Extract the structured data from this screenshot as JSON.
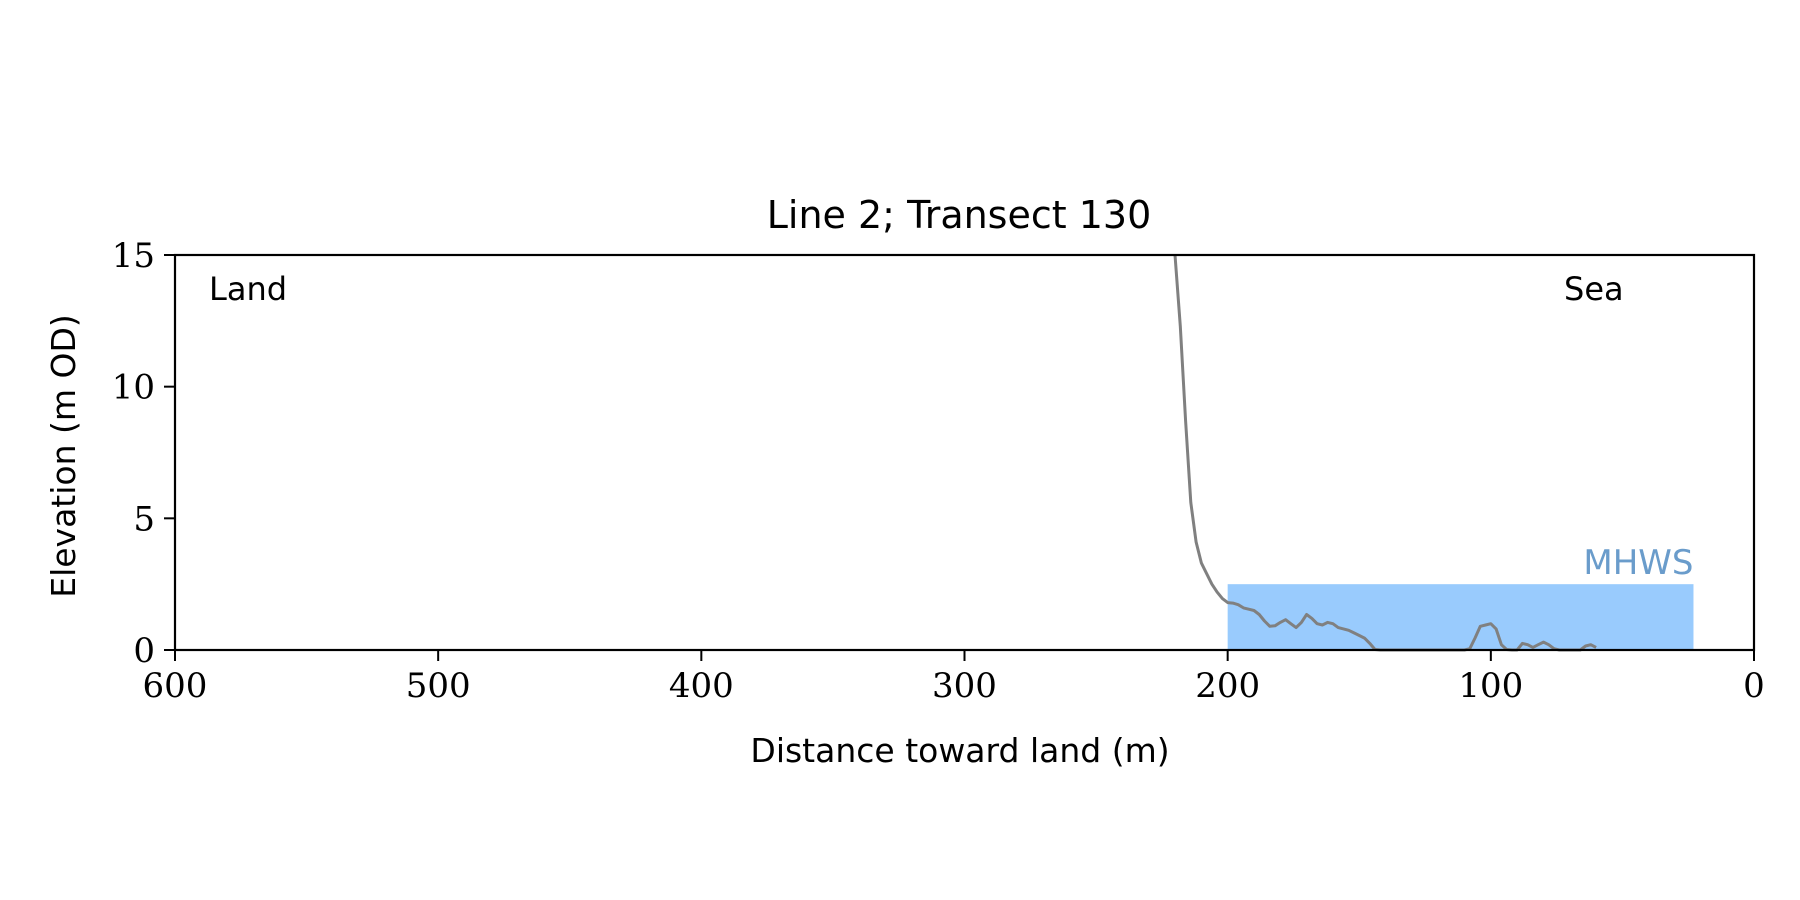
{
  "chart_data": {
    "type": "line",
    "title": "Line 2; Transect 130",
    "xlabel": "Distance toward land (m)",
    "ylabel": "Elevation (m OD)",
    "xlim": [
      600,
      0
    ],
    "ylim": [
      0,
      15
    ],
    "x_inverted": true,
    "xticks": [
      600,
      500,
      400,
      300,
      200,
      100,
      0
    ],
    "yticks": [
      0,
      5,
      10,
      15
    ],
    "grid": false,
    "annotations": {
      "left_label": "Land",
      "right_label": "Sea"
    },
    "water_level": {
      "label": "MHWS",
      "elevation": 2.5,
      "x_start": 200,
      "x_end": 23,
      "color": "#99cbfd",
      "label_color": "#6a9ccb"
    },
    "series": [
      {
        "color": "#808080",
        "x": [
          220,
          218,
          216,
          214,
          212,
          210,
          208,
          206,
          204,
          202,
          200,
          198,
          196,
          194,
          192,
          190,
          188,
          186,
          184,
          182,
          180,
          178,
          176,
          174,
          172,
          170,
          168,
          166,
          164,
          162,
          160,
          158,
          156,
          154,
          152,
          150,
          148,
          146,
          144,
          142,
          140,
          138,
          136,
          134,
          132,
          130,
          128,
          126,
          124,
          122,
          120,
          118,
          116,
          114,
          112,
          110,
          108,
          106,
          104,
          102,
          100,
          98,
          96,
          94,
          92,
          90,
          88,
          86,
          84,
          82,
          80,
          78,
          76,
          74,
          72,
          70,
          68,
          66,
          64,
          62,
          60
        ],
        "y": [
          15.0,
          12.3,
          8.7,
          5.6,
          4.1,
          3.3,
          2.9,
          2.5,
          2.2,
          1.95,
          1.8,
          1.78,
          1.72,
          1.6,
          1.55,
          1.5,
          1.35,
          1.1,
          0.9,
          0.92,
          1.05,
          1.15,
          1.0,
          0.85,
          1.05,
          1.35,
          1.2,
          1.0,
          0.95,
          1.05,
          1.0,
          0.85,
          0.8,
          0.75,
          0.65,
          0.55,
          0.45,
          0.25,
          0.02,
          0.0,
          0.0,
          0.0,
          0.0,
          0.0,
          0.0,
          0.0,
          0.0,
          0.0,
          0.0,
          0.0,
          0.0,
          0.0,
          0.0,
          0.0,
          0.0,
          0.0,
          0.05,
          0.45,
          0.9,
          0.95,
          1.0,
          0.8,
          0.2,
          0.02,
          0.0,
          0.0,
          0.25,
          0.2,
          0.1,
          0.2,
          0.3,
          0.2,
          0.05,
          0.0,
          0.0,
          0.0,
          0.0,
          0.0,
          0.15,
          0.2,
          0.1
        ]
      }
    ]
  }
}
